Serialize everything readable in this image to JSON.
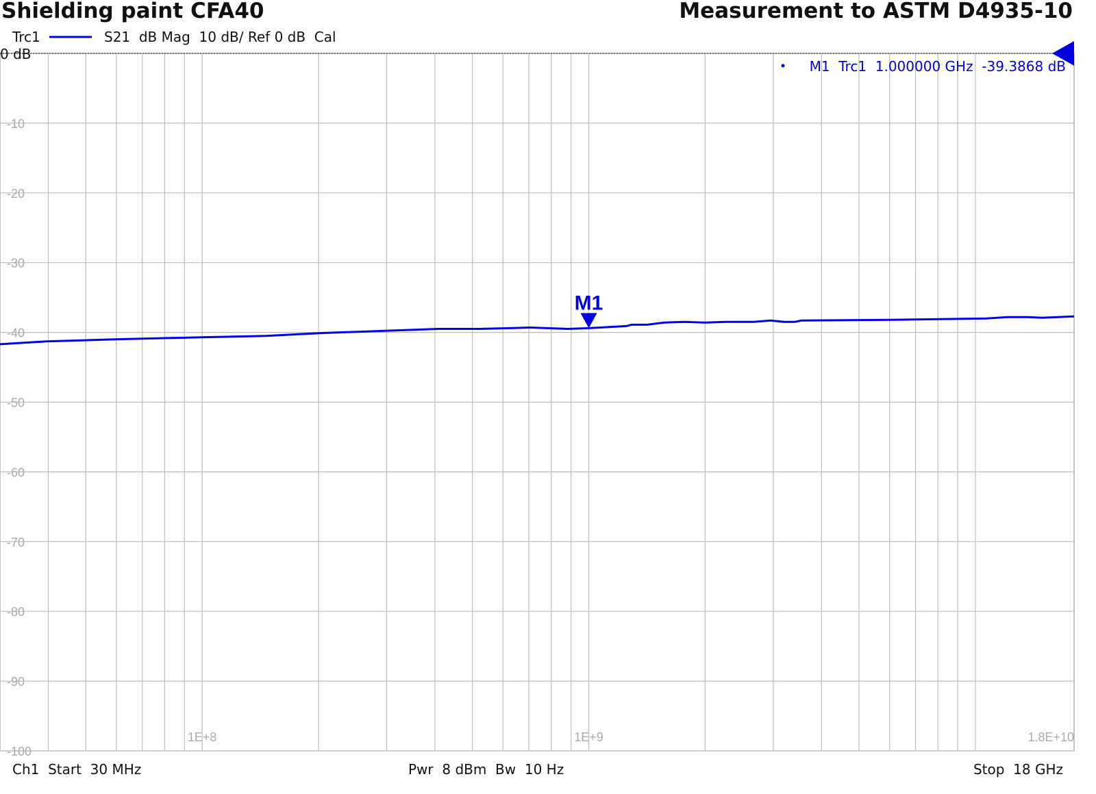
{
  "chart_data": {
    "type": "line",
    "title": "Shielding paint CFA40",
    "subtitle": "Measurement to ASTM D4935-10",
    "trace_header": {
      "trace": "Trc1",
      "description": "S21  dB Mag  10 dB/ Ref 0 dB  Cal"
    },
    "x_scale": "log",
    "xlim_hz": [
      30000000,
      18000000000
    ],
    "ylim": [
      -100,
      0
    ],
    "y_ref_label": "0 dB",
    "y_tick_labels": [
      "-10",
      "-20",
      "-30",
      "-40",
      "-50",
      "-60",
      "-70",
      "-80",
      "-90",
      "-100"
    ],
    "y_ticks": [
      -10,
      -20,
      -30,
      -40,
      -50,
      -60,
      -70,
      -80,
      -90,
      -100
    ],
    "x_tick_labels": [
      "1E+8",
      "1E+9",
      "1.8E+10"
    ],
    "x_ticks_hz": [
      100000000,
      1000000000,
      18000000000
    ],
    "grid": true,
    "series": [
      {
        "color": "#0000e0",
        "x_hz": [
          30000000,
          39500000,
          59400000,
          100000000,
          146000000,
          203000000,
          406000000,
          520000000,
          612000000,
          706000000,
          885000000,
          1000000000,
          1252000000,
          1289000000,
          1416000000,
          1567000000,
          1773000000,
          2005000000,
          2266000000,
          2667000000,
          2955000000,
          3207000000,
          3410000000,
          3550000000,
          6055000000,
          10700000000,
          12100000000,
          13700000000,
          14900000000,
          18000000000
        ],
        "y_db": [
          -41.7,
          -41.3,
          -41.0,
          -40.7,
          -40.5,
          -40.1,
          -39.5,
          -39.5,
          -39.4,
          -39.3,
          -39.5,
          -39.39,
          -39.1,
          -38.9,
          -38.9,
          -38.6,
          -38.5,
          -38.6,
          -38.5,
          -38.5,
          -38.3,
          -38.5,
          -38.5,
          -38.3,
          -38.2,
          -38.0,
          -37.8,
          -37.8,
          -37.9,
          -37.7
        ]
      }
    ],
    "marker": {
      "label": "M1",
      "readout": "M1  Trc1  1.000000 GHz  -39.3868 dB",
      "x_hz": 1000000000,
      "y_db": -39.3868,
      "color": "#0000e0"
    },
    "footer": {
      "start": "Ch1  Start  30 MHz",
      "middle": "Pwr  8 dBm  Bw  10 Hz",
      "stop": "Stop  18 GHz"
    }
  }
}
